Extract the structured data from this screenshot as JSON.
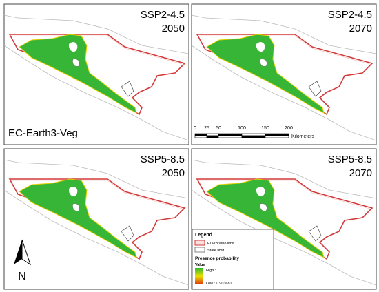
{
  "panels": [
    {
      "scenario": "SSP2-4.5",
      "year": "2050"
    },
    {
      "scenario": "SSP2-4.5",
      "year": "2070"
    },
    {
      "scenario": "SSP5-8.5",
      "year": "2050"
    },
    {
      "scenario": "SSP5-8.5",
      "year": "2070"
    }
  ],
  "model": "EC-Earth3-Veg",
  "scale_bar": {
    "ticks": [
      0,
      25,
      50,
      100,
      150,
      200
    ],
    "unit": "Kilometers"
  },
  "legend": {
    "title": "Legend",
    "items": [
      "El Vizcaíno limit",
      "State limit"
    ],
    "section": "Presence probability",
    "value_label": "Value",
    "high": "High : 1",
    "low": "Low : 0.903681"
  },
  "north": "N"
}
